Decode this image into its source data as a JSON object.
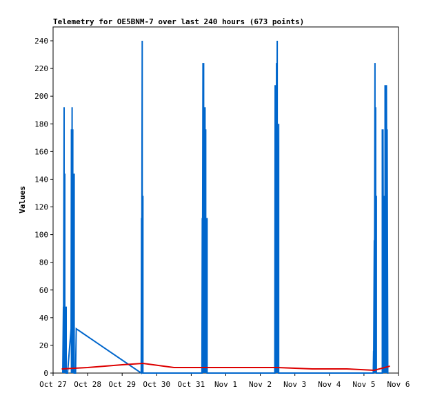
{
  "chart_data": {
    "type": "line",
    "title": "Telemetry for OE5BNM-7 over last 240 hours (673 points)",
    "xlabel": "",
    "ylabel": "Values",
    "xlim": [
      "Oct 27",
      "Nov 6"
    ],
    "ylim": [
      0,
      250
    ],
    "x_ticks": [
      "Oct 27",
      "Oct 28",
      "Oct 29",
      "Oct 30",
      "Oct 31",
      "Nov 1",
      "Nov 2",
      "Nov 3",
      "Nov 4",
      "Nov 5",
      "Nov 6"
    ],
    "y_ticks": [
      0,
      20,
      40,
      60,
      80,
      100,
      120,
      140,
      160,
      180,
      200,
      220,
      240
    ],
    "grid": false,
    "series": [
      {
        "color": "#0066cc",
        "note_x_units": "days after Oct 27 00:00",
        "x": [
          0.28,
          0.3,
          0.3,
          0.32,
          0.32,
          0.34,
          0.34,
          0.36,
          0.36,
          0.38,
          0.38,
          0.4,
          0.4,
          0.42,
          0.42,
          0.52,
          0.53,
          0.53,
          0.55,
          0.55,
          0.57,
          0.57,
          0.59,
          0.59,
          0.61,
          0.61,
          0.63,
          0.63,
          0.65,
          0.65,
          0.67,
          2.55,
          2.56,
          2.56,
          2.58,
          2.58,
          2.6,
          2.6,
          2.62,
          2.62,
          4.31,
          4.32,
          4.32,
          4.34,
          4.34,
          4.36,
          4.36,
          4.38,
          4.38,
          4.4,
          4.4,
          4.42,
          4.42,
          4.44,
          4.44,
          4.46,
          4.46,
          4.48,
          6.42,
          6.43,
          6.43,
          6.45,
          6.45,
          6.47,
          6.47,
          6.49,
          6.49,
          6.51,
          6.51,
          6.53,
          6.53,
          6.55,
          6.55,
          9.27,
          9.28,
          9.28,
          9.3,
          9.3,
          9.32,
          9.32,
          9.34,
          9.34,
          9.36,
          9.36,
          9.52,
          9.53,
          9.53,
          9.55,
          9.55,
          9.57,
          9.57,
          9.59,
          9.59,
          9.61,
          9.61,
          9.63,
          9.63,
          9.65,
          9.65,
          9.67,
          9.67,
          9.69,
          9.69,
          9.71
        ],
        "values": [
          0,
          48,
          0,
          192,
          0,
          144,
          0,
          36,
          0,
          48,
          0,
          0,
          0,
          0,
          0,
          32,
          176,
          0,
          192,
          0,
          176,
          0,
          144,
          0,
          144,
          0,
          0,
          0,
          0,
          0,
          32,
          0,
          112,
          0,
          240,
          0,
          128,
          0,
          0,
          0,
          0,
          112,
          0,
          224,
          0,
          224,
          0,
          96,
          0,
          192,
          0,
          176,
          0,
          112,
          0,
          112,
          0,
          0,
          0,
          208,
          0,
          112,
          0,
          224,
          0,
          240,
          0,
          160,
          0,
          180,
          0,
          0,
          0,
          0,
          16,
          0,
          96,
          0,
          224,
          0,
          192,
          0,
          128,
          0,
          0,
          0,
          176,
          0,
          176,
          0,
          96,
          0,
          128,
          0,
          208,
          0,
          192,
          0,
          208,
          0,
          176,
          0,
          0,
          0
        ]
      },
      {
        "color": "#dd0000",
        "note_x_units": "days after Oct 27 00:00",
        "x": [
          0.25,
          1.0,
          2.0,
          2.6,
          3.5,
          4.5,
          5.5,
          6.5,
          7.5,
          8.5,
          9.3,
          9.75
        ],
        "values": [
          3,
          4,
          6,
          7,
          4,
          4,
          4,
          4,
          3,
          3,
          2,
          5
        ]
      }
    ]
  }
}
